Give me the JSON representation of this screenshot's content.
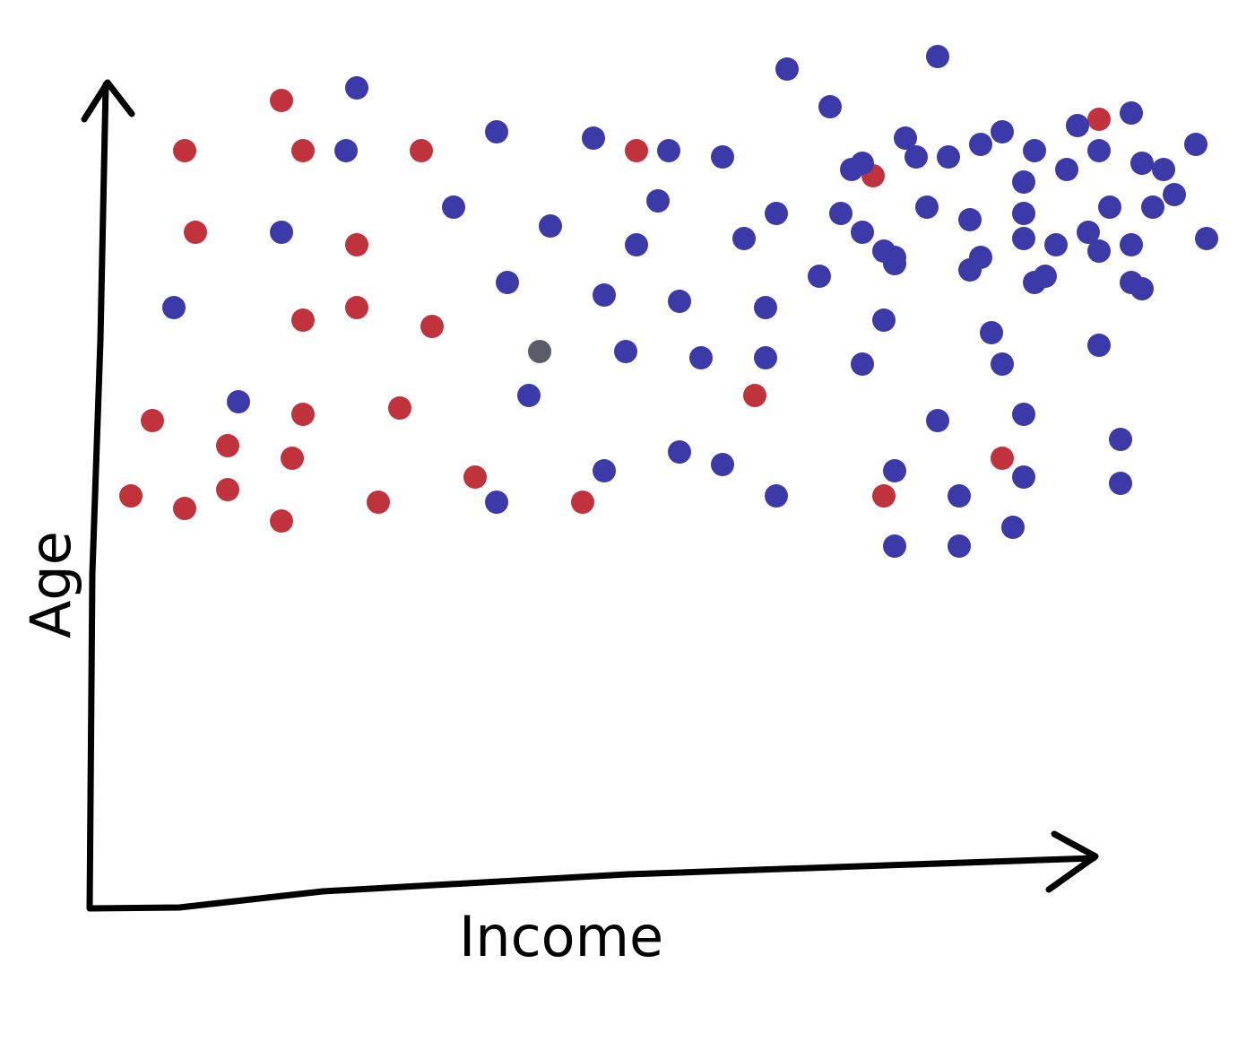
{
  "chart_data": {
    "type": "scatter",
    "title": "",
    "xlabel": "Income",
    "ylabel": "Age",
    "xlim": [
      0,
      100
    ],
    "ylim": [
      0,
      100
    ],
    "grid": false,
    "legend": "none",
    "series": [
      {
        "color": "#c0333d",
        "points": [
          [
            17,
            94
          ],
          [
            8,
            86
          ],
          [
            19,
            86
          ],
          [
            30,
            86
          ],
          [
            50,
            86
          ],
          [
            72,
            82
          ],
          [
            93,
            91
          ],
          [
            9,
            73
          ],
          [
            24,
            71
          ],
          [
            24,
            61
          ],
          [
            19,
            59
          ],
          [
            31,
            58
          ],
          [
            5,
            43
          ],
          [
            19,
            44
          ],
          [
            28,
            45
          ],
          [
            12,
            39
          ],
          [
            18,
            37
          ],
          [
            35,
            34
          ],
          [
            3,
            31
          ],
          [
            12,
            32
          ],
          [
            8,
            29
          ],
          [
            17,
            27
          ],
          [
            26,
            30
          ],
          [
            45,
            30
          ],
          [
            61,
            47
          ],
          [
            84,
            37
          ],
          [
            73,
            31
          ]
        ]
      },
      {
        "color": "#3b3aa8",
        "points": [
          [
            24,
            96
          ],
          [
            64,
            99
          ],
          [
            68,
            93
          ],
          [
            78,
            101
          ],
          [
            37,
            89
          ],
          [
            46,
            88
          ],
          [
            75,
            88
          ],
          [
            23,
            86
          ],
          [
            53,
            86
          ],
          [
            58,
            85
          ],
          [
            70,
            83
          ],
          [
            71,
            84
          ],
          [
            76,
            85
          ],
          [
            79,
            85
          ],
          [
            82,
            87
          ],
          [
            84,
            89
          ],
          [
            87,
            86
          ],
          [
            91,
            90
          ],
          [
            93,
            86
          ],
          [
            96,
            92
          ],
          [
            97,
            84
          ],
          [
            99,
            83
          ],
          [
            102,
            87
          ],
          [
            86,
            81
          ],
          [
            90,
            83
          ],
          [
            33,
            77
          ],
          [
            52,
            78
          ],
          [
            63,
            76
          ],
          [
            69,
            76
          ],
          [
            77,
            77
          ],
          [
            81,
            75
          ],
          [
            86,
            76
          ],
          [
            92,
            73
          ],
          [
            94,
            77
          ],
          [
            98,
            77
          ],
          [
            100,
            79
          ],
          [
            17,
            73
          ],
          [
            42,
            74
          ],
          [
            50,
            71
          ],
          [
            60,
            72
          ],
          [
            71,
            73
          ],
          [
            73,
            70
          ],
          [
            86,
            72
          ],
          [
            89,
            71
          ],
          [
            93,
            70
          ],
          [
            96,
            71
          ],
          [
            103,
            72
          ],
          [
            82,
            69
          ],
          [
            38,
            65
          ],
          [
            67,
            66
          ],
          [
            74,
            68
          ],
          [
            74,
            69
          ],
          [
            81,
            67
          ],
          [
            87,
            65
          ],
          [
            88,
            66
          ],
          [
            96,
            65
          ],
          [
            97,
            64
          ],
          [
            7,
            61
          ],
          [
            47,
            63
          ],
          [
            54,
            62
          ],
          [
            62,
            61
          ],
          [
            73,
            59
          ],
          [
            83,
            57
          ],
          [
            93,
            55
          ],
          [
            49,
            54
          ],
          [
            56,
            53
          ],
          [
            62,
            53
          ],
          [
            71,
            52
          ],
          [
            84,
            52
          ],
          [
            13,
            46
          ],
          [
            40,
            47
          ],
          [
            78,
            43
          ],
          [
            86,
            44
          ],
          [
            95,
            40
          ],
          [
            47,
            35
          ],
          [
            54,
            38
          ],
          [
            58,
            36
          ],
          [
            74,
            35
          ],
          [
            86,
            34
          ],
          [
            95,
            33
          ],
          [
            37,
            30
          ],
          [
            63,
            31
          ],
          [
            80,
            31
          ],
          [
            85,
            26
          ],
          [
            74,
            23
          ],
          [
            80,
            23
          ]
        ]
      },
      {
        "color": "#5a5c6a",
        "points": [
          [
            41,
            54
          ]
        ]
      }
    ]
  }
}
